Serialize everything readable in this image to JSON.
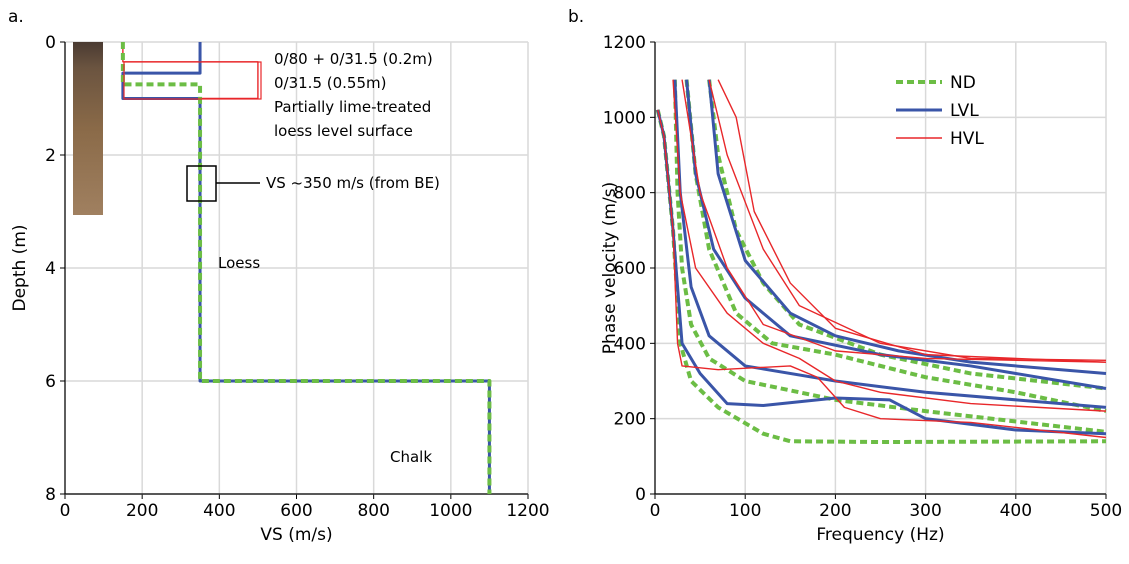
{
  "chart_data": [
    {
      "type": "line",
      "panel_label": "a.",
      "x_label": "VS (m/s)",
      "y_label": "Depth (m)",
      "xlim": [
        0,
        1200
      ],
      "xticks": [
        0,
        200,
        400,
        600,
        800,
        1000,
        1200
      ],
      "ylim": [
        0,
        8
      ],
      "yticks": [
        0,
        2,
        4,
        6,
        8
      ],
      "y_inverted": true,
      "grid": true,
      "annotations": [
        "0/80 + 0/31.5 (0.2m)",
        "0/31.5 (0.55m)",
        "Partially lime-treated",
        "loess level surface",
        "VS ~350 m/s (from BE)",
        "Loess",
        "Chalk"
      ],
      "series": [
        {
          "name": "HVL",
          "color": "#e8272a",
          "line_style": "thin",
          "x": [
            150,
            150,
            500,
            500,
            350,
            350,
            1100,
            1100
          ],
          "values": [
            0,
            0.35,
            0.35,
            1.0,
            1.0,
            6,
            6,
            8
          ]
        },
        {
          "name": "LVL",
          "color": "#3a55a8",
          "line_style": "solid",
          "x": [
            350,
            350,
            150,
            150,
            350,
            350,
            1100,
            1100
          ],
          "values": [
            0,
            0.55,
            0.55,
            1.0,
            1.0,
            6,
            6,
            8
          ]
        },
        {
          "name": "ND",
          "color": "#6cbd45",
          "line_style": "dashed",
          "x": [
            150,
            150,
            350,
            350,
            1100,
            1100
          ],
          "values": [
            0,
            0.75,
            0.75,
            6,
            6,
            8
          ]
        }
      ]
    },
    {
      "type": "line",
      "panel_label": "b.",
      "x_label": "Frequency (Hz)",
      "y_label": "Phase velocity (m/s)",
      "xlim": [
        0,
        500
      ],
      "xticks": [
        0,
        100,
        200,
        300,
        400,
        500
      ],
      "ylim": [
        0,
        1200
      ],
      "yticks": [
        0,
        200,
        400,
        600,
        800,
        1000,
        1200
      ],
      "grid": true,
      "legend": "upper right",
      "series": [
        {
          "name": "ND",
          "color": "#6cbd45",
          "line_style": "dashed",
          "curves": [
            {
              "x": [
                3,
                10,
                20,
                28,
                40,
                70,
                120,
                150,
                250,
                500
              ],
              "values": [
                1020,
                950,
                700,
                400,
                300,
                230,
                160,
                140,
                138,
                140
              ]
            },
            {
              "x": [
                22,
                25,
                30,
                40,
                60,
                100,
                200,
                300,
                500
              ],
              "values": [
                1100,
                800,
                600,
                450,
                360,
                300,
                250,
                220,
                165
              ]
            },
            {
              "x": [
                35,
                45,
                60,
                90,
                130,
                200,
                300,
                400,
                500
              ],
              "values": [
                1100,
                850,
                650,
                480,
                400,
                370,
                310,
                270,
                220
              ]
            },
            {
              "x": [
                60,
                70,
                90,
                120,
                160,
                250,
                350,
                500
              ],
              "values": [
                1100,
                900,
                700,
                560,
                450,
                370,
                320,
                280
              ]
            }
          ]
        },
        {
          "name": "LVL",
          "color": "#3a55a8",
          "line_style": "solid",
          "curves": [
            {
              "x": [
                3,
                10,
                20,
                30,
                50,
                80,
                120,
                200,
                260,
                300,
                400,
                500
              ],
              "values": [
                1020,
                950,
                700,
                400,
                320,
                240,
                235,
                255,
                250,
                200,
                170,
                160
              ]
            },
            {
              "x": [
                22,
                28,
                40,
                60,
                100,
                200,
                300,
                500
              ],
              "values": [
                1100,
                800,
                550,
                420,
                340,
                300,
                270,
                230
              ]
            },
            {
              "x": [
                35,
                45,
                65,
                100,
                150,
                250,
                350,
                500
              ],
              "values": [
                1100,
                850,
                650,
                520,
                420,
                370,
                340,
                280
              ]
            },
            {
              "x": [
                60,
                70,
                100,
                150,
                200,
                270,
                350,
                500
              ],
              "values": [
                1100,
                850,
                620,
                480,
                420,
                380,
                350,
                320
              ]
            }
          ]
        },
        {
          "name": "HVL",
          "color": "#e8272a",
          "line_style": "thin",
          "curves": [
            {
              "x": [
                3,
                10,
                20,
                25,
                30,
                70,
                150,
                180,
                210,
                250,
                350,
                500
              ],
              "values": [
                1020,
                950,
                700,
                400,
                340,
                330,
                340,
                310,
                230,
                200,
                190,
                150
              ]
            },
            {
              "x": [
                20,
                28,
                45,
                80,
                120,
                160,
                200,
                250,
                350,
                500
              ],
              "values": [
                1100,
                800,
                600,
                480,
                400,
                360,
                300,
                270,
                240,
                220
              ]
            },
            {
              "x": [
                30,
                50,
                80,
                120,
                200,
                300,
                500
              ],
              "values": [
                1100,
                800,
                600,
                450,
                380,
                360,
                350
              ]
            },
            {
              "x": [
                60,
                80,
                120,
                160,
                250,
                350,
                500
              ],
              "values": [
                1100,
                900,
                650,
                500,
                400,
                360,
                355
              ]
            },
            {
              "x": [
                70,
                90,
                110,
                150,
                200,
                300,
                500
              ],
              "values": [
                1100,
                1000,
                750,
                560,
                440,
                370,
                350
              ]
            }
          ]
        }
      ]
    }
  ]
}
